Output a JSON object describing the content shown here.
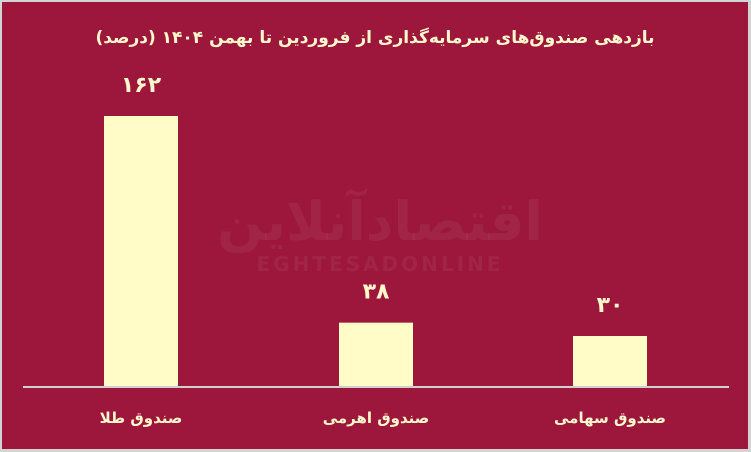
{
  "chart_data": {
    "type": "bar",
    "title": "بازدهی صندوق‌های سرمایه‌گذاری از فروردین تا بهمن ۱۴۰۴ (درصد)",
    "categories": [
      "صندوق طلا",
      "صندوق اهرمی",
      "صندوق سهامی"
    ],
    "values": [
      162,
      38,
      30
    ],
    "value_labels": [
      "۱۶۲",
      "۳۸",
      "۳۰"
    ],
    "xlabel": "",
    "ylabel": "",
    "ylim": [
      0,
      170
    ],
    "grid": false,
    "legend": "none",
    "colors": {
      "background": "#9c173b",
      "bar": "#fffcc8",
      "text": "#fff8cc",
      "axis": "#d0d0d0"
    }
  },
  "watermark": {
    "fa": "اقتصادآنلاین",
    "en": "EGHTESADONLINE"
  }
}
